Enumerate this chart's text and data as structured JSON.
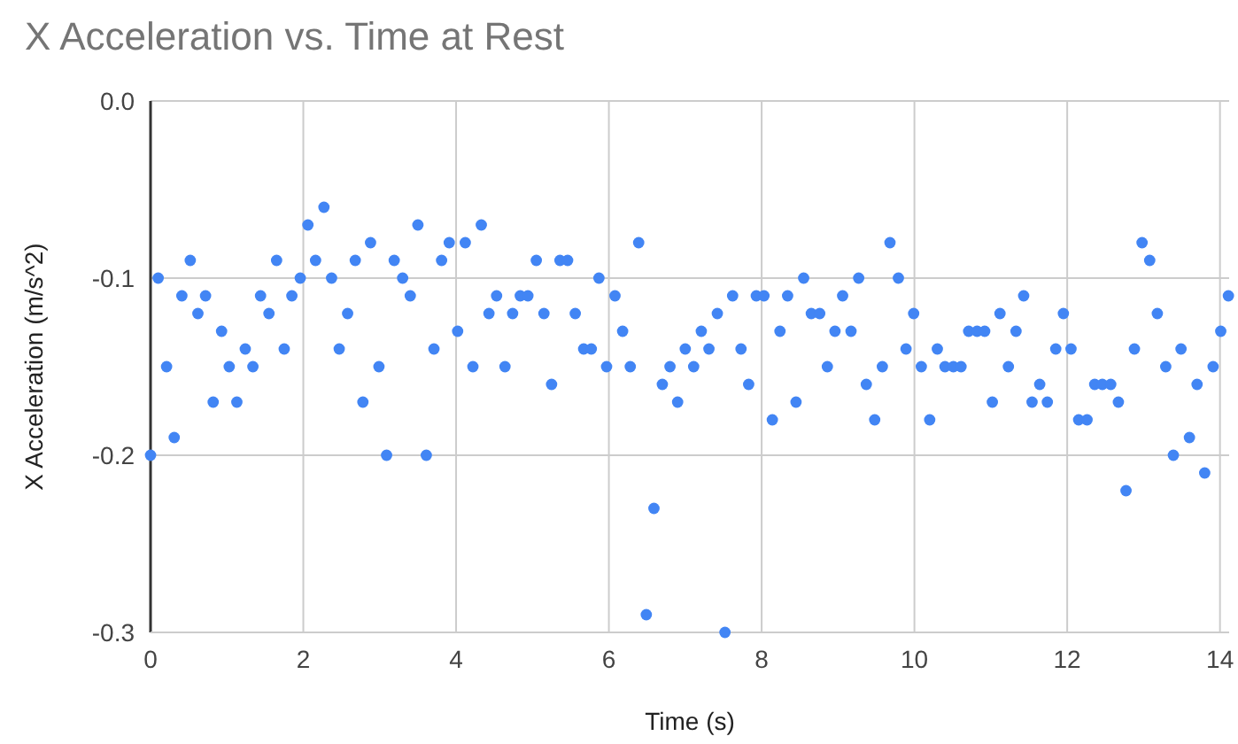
{
  "chart_data": {
    "type": "scatter",
    "title": "X Acceleration vs. Time at Rest",
    "xlabel": "Time (s)",
    "ylabel": "X Acceleration (m/s^2)",
    "xlim": [
      0,
      14.12
    ],
    "xticks": [
      0,
      2,
      4,
      6,
      8,
      10,
      12,
      14
    ],
    "ylim": [
      -0.3,
      0
    ],
    "yticks": [
      {
        "value": -0.3,
        "label": "-0.3"
      },
      {
        "value": -0.2,
        "label": "-0.2"
      },
      {
        "value": -0.1,
        "label": "-0.1"
      },
      {
        "value": 0,
        "label": "0.0"
      }
    ],
    "grid": true,
    "marker": "circle",
    "series": [
      {
        "color": "#4285f4",
        "x": [
          0,
          0.1,
          0.21,
          0.31,
          0.41,
          0.52,
          0.62,
          0.72,
          0.82,
          0.93,
          1.03,
          1.13,
          1.24,
          1.34,
          1.44,
          1.55,
          1.65,
          1.75,
          1.85,
          1.96,
          2.06,
          2.16,
          2.27,
          2.37,
          2.47,
          2.58,
          2.68,
          2.78,
          2.88,
          2.99,
          3.09,
          3.19,
          3.3,
          3.4,
          3.5,
          3.61,
          3.71,
          3.81,
          3.91,
          4.02,
          4.12,
          4.22,
          4.33,
          4.43,
          4.53,
          4.64,
          4.74,
          4.84,
          4.94,
          5.05,
          5.15,
          5.25,
          5.36,
          5.46,
          5.56,
          5.67,
          5.77,
          5.87,
          5.97,
          6.08,
          6.18,
          6.28,
          6.39,
          6.49,
          6.59,
          6.7,
          6.8,
          6.9,
          7.0,
          7.11,
          7.21,
          7.31,
          7.42,
          7.52,
          7.62,
          7.73,
          7.83,
          7.93,
          8.03,
          8.14,
          8.24,
          8.34,
          8.45,
          8.55,
          8.65,
          8.76,
          8.86,
          8.96,
          9.06,
          9.17,
          9.27,
          9.37,
          9.48,
          9.58,
          9.68,
          9.79,
          9.89,
          9.99,
          10.09,
          10.2,
          10.3,
          10.4,
          10.51,
          10.61,
          10.71,
          10.82,
          10.92,
          11.02,
          11.12,
          11.23,
          11.33,
          11.43,
          11.54,
          11.64,
          11.74,
          11.85,
          11.95,
          12.05,
          12.15,
          12.26,
          12.36,
          12.46,
          12.57,
          12.67,
          12.77,
          12.88,
          12.98,
          13.08,
          13.18,
          13.29,
          13.39,
          13.49,
          13.6,
          13.7,
          13.8,
          13.91,
          14.01,
          14.11
        ],
        "values": [
          -0.2,
          -0.1,
          -0.15,
          -0.19,
          -0.11,
          -0.09,
          -0.12,
          -0.11,
          -0.17,
          -0.13,
          -0.15,
          -0.17,
          -0.14,
          -0.15,
          -0.11,
          -0.12,
          -0.09,
          -0.14,
          -0.11,
          -0.1,
          -0.07,
          -0.09,
          -0.06,
          -0.1,
          -0.14,
          -0.12,
          -0.09,
          -0.17,
          -0.08,
          -0.15,
          -0.2,
          -0.09,
          -0.1,
          -0.11,
          -0.07,
          -0.2,
          -0.14,
          -0.09,
          -0.08,
          -0.13,
          -0.08,
          -0.15,
          -0.07,
          -0.12,
          -0.11,
          -0.15,
          -0.12,
          -0.11,
          -0.11,
          -0.09,
          -0.12,
          -0.16,
          -0.09,
          -0.09,
          -0.12,
          -0.14,
          -0.14,
          -0.1,
          -0.15,
          -0.11,
          -0.13,
          -0.15,
          -0.08,
          -0.29,
          -0.23,
          -0.16,
          -0.15,
          -0.17,
          -0.14,
          -0.15,
          -0.13,
          -0.14,
          -0.12,
          -0.3,
          -0.11,
          -0.14,
          -0.16,
          -0.11,
          -0.11,
          -0.18,
          -0.13,
          -0.11,
          -0.17,
          -0.1,
          -0.12,
          -0.12,
          -0.15,
          -0.13,
          -0.11,
          -0.13,
          -0.1,
          -0.16,
          -0.18,
          -0.15,
          -0.08,
          -0.1,
          -0.14,
          -0.12,
          -0.15,
          -0.18,
          -0.14,
          -0.15,
          -0.15,
          -0.15,
          -0.13,
          -0.13,
          -0.13,
          -0.17,
          -0.12,
          -0.15,
          -0.13,
          -0.11,
          -0.17,
          -0.16,
          -0.17,
          -0.14,
          -0.12,
          -0.14,
          -0.18,
          -0.18,
          -0.16,
          -0.16,
          -0.16,
          -0.17,
          -0.22,
          -0.14,
          -0.08,
          -0.09,
          -0.12,
          -0.15,
          -0.2,
          -0.14,
          -0.19,
          -0.16,
          -0.21,
          -0.15,
          -0.13,
          -0.11
        ]
      }
    ]
  }
}
